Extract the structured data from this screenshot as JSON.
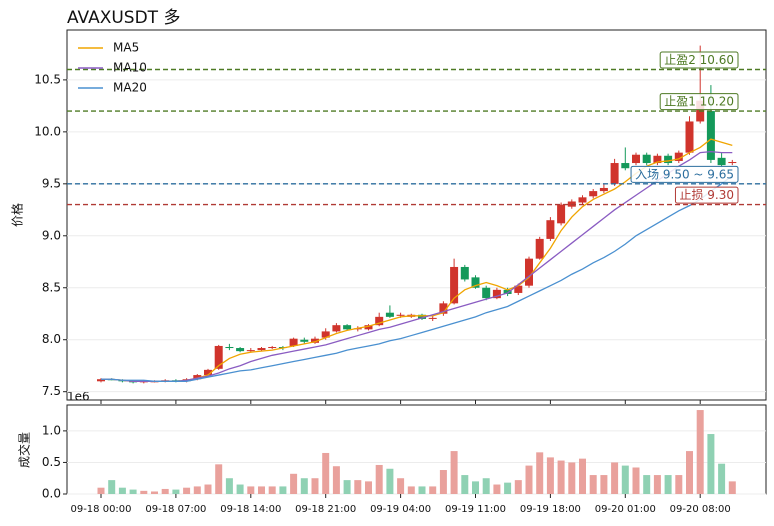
{
  "chart_data": {
    "type": "candlestick",
    "title": "AVAXUSDT  多",
    "ylabel": "价格",
    "volume_label": "成交量",
    "volume_offset_label": "1e6",
    "categories": [
      "09-18 00:00",
      null,
      null,
      null,
      null,
      null,
      null,
      "09-18 07:00",
      null,
      null,
      null,
      null,
      null,
      null,
      "09-18 14:00",
      null,
      null,
      null,
      null,
      null,
      null,
      "09-18 21:00",
      null,
      null,
      null,
      null,
      null,
      null,
      "09-19 04:00",
      null,
      null,
      null,
      null,
      null,
      null,
      "09-19 11:00",
      null,
      null,
      null,
      null,
      null,
      null,
      "09-19 18:00",
      null,
      null,
      null,
      null,
      null,
      null,
      "09-20 01:00",
      null,
      null,
      null,
      null,
      null,
      null,
      "09-20 08:00",
      null,
      null,
      null
    ],
    "open": [
      7.6,
      7.62,
      7.61,
      7.6,
      7.59,
      7.6,
      7.6,
      7.61,
      7.6,
      7.62,
      7.66,
      7.72,
      7.93,
      7.92,
      7.89,
      7.9,
      7.92,
      7.93,
      7.94,
      8.0,
      7.97,
      8.02,
      8.08,
      8.14,
      8.1,
      8.1,
      8.14,
      8.26,
      8.23,
      8.22,
      8.24,
      8.2,
      8.25,
      8.35,
      8.7,
      8.6,
      8.5,
      8.4,
      8.48,
      8.45,
      8.52,
      8.78,
      8.97,
      9.12,
      9.28,
      9.32,
      9.38,
      9.43,
      9.5,
      9.7,
      9.7,
      9.78,
      9.7,
      9.77,
      9.72,
      9.8,
      10.1,
      10.2,
      9.75,
      9.7
    ],
    "high": [
      7.63,
      7.63,
      7.62,
      7.61,
      7.61,
      7.61,
      7.62,
      7.62,
      7.63,
      7.67,
      7.72,
      7.95,
      7.96,
      7.93,
      7.92,
      7.93,
      7.94,
      7.94,
      8.02,
      8.02,
      8.03,
      8.11,
      8.16,
      8.15,
      8.13,
      8.15,
      8.26,
      8.33,
      8.26,
      8.25,
      8.25,
      8.23,
      8.37,
      8.78,
      8.72,
      8.62,
      8.52,
      8.5,
      8.5,
      8.54,
      8.8,
      8.99,
      9.18,
      9.32,
      9.35,
      9.39,
      9.45,
      9.5,
      9.74,
      9.85,
      9.8,
      9.8,
      9.79,
      9.79,
      9.82,
      10.15,
      10.83,
      10.45,
      9.8,
      9.73
    ],
    "low": [
      7.59,
      7.61,
      7.59,
      7.58,
      7.58,
      7.59,
      7.59,
      7.59,
      7.59,
      7.61,
      7.65,
      7.71,
      7.9,
      7.88,
      7.88,
      7.89,
      7.91,
      7.9,
      7.93,
      7.96,
      7.96,
      8.0,
      8.07,
      8.09,
      8.08,
      8.09,
      8.13,
      8.21,
      8.21,
      8.21,
      8.19,
      8.18,
      8.23,
      8.34,
      8.56,
      8.49,
      8.38,
      8.39,
      8.42,
      8.43,
      8.5,
      8.77,
      8.95,
      9.1,
      9.26,
      9.3,
      9.36,
      9.41,
      9.48,
      9.63,
      9.68,
      9.68,
      9.68,
      9.68,
      9.7,
      9.78,
      10.08,
      9.7,
      9.66,
      9.68
    ],
    "close": [
      7.62,
      7.61,
      7.6,
      7.59,
      7.6,
      7.6,
      7.61,
      7.6,
      7.62,
      7.66,
      7.71,
      7.94,
      7.92,
      7.89,
      7.9,
      7.92,
      7.93,
      7.92,
      8.01,
      7.98,
      8.01,
      8.08,
      8.14,
      8.1,
      8.11,
      8.14,
      8.22,
      8.22,
      8.24,
      8.24,
      8.2,
      8.21,
      8.35,
      8.7,
      8.58,
      8.5,
      8.4,
      8.48,
      8.44,
      8.52,
      8.78,
      8.97,
      9.15,
      9.3,
      9.33,
      9.37,
      9.43,
      9.46,
      9.7,
      9.65,
      9.78,
      9.7,
      9.77,
      9.7,
      9.8,
      10.1,
      10.3,
      9.73,
      9.68,
      9.71
    ],
    "volume": [
      0.1,
      0.22,
      0.1,
      0.07,
      0.05,
      0.04,
      0.08,
      0.07,
      0.1,
      0.12,
      0.15,
      0.47,
      0.25,
      0.15,
      0.12,
      0.12,
      0.12,
      0.12,
      0.32,
      0.25,
      0.25,
      0.65,
      0.44,
      0.22,
      0.22,
      0.2,
      0.46,
      0.4,
      0.25,
      0.12,
      0.12,
      0.12,
      0.38,
      0.68,
      0.3,
      0.2,
      0.25,
      0.15,
      0.18,
      0.22,
      0.45,
      0.66,
      0.58,
      0.53,
      0.5,
      0.56,
      0.3,
      0.3,
      0.5,
      0.45,
      0.42,
      0.3,
      0.3,
      0.3,
      0.3,
      0.68,
      1.33,
      0.95,
      0.48,
      0.2
    ],
    "up_color": "#d0342c",
    "down_color": "#14995a",
    "up_volume_color": "#e9a19c",
    "down_volume_color": "#8fd1b3",
    "series": [
      {
        "name": "MA5",
        "color": "#f0a500",
        "values": [
          7.62,
          7.62,
          7.61,
          7.6,
          7.6,
          7.6,
          7.6,
          7.6,
          7.61,
          7.63,
          7.66,
          7.75,
          7.82,
          7.86,
          7.88,
          7.89,
          7.9,
          7.92,
          7.94,
          7.96,
          7.98,
          8.02,
          8.06,
          8.09,
          8.11,
          8.13,
          8.16,
          8.19,
          8.22,
          8.23,
          8.23,
          8.23,
          8.26,
          8.4,
          8.48,
          8.52,
          8.55,
          8.52,
          8.48,
          8.52,
          8.6,
          8.74,
          8.88,
          9.05,
          9.18,
          9.28,
          9.35,
          9.4,
          9.45,
          9.52,
          9.6,
          9.67,
          9.71,
          9.72,
          9.74,
          9.8,
          9.85,
          9.93,
          9.9,
          9.87
        ]
      },
      {
        "name": "MA10",
        "color": "#8a5cc2",
        "values": [
          7.62,
          7.62,
          7.61,
          7.6,
          7.6,
          7.6,
          7.6,
          7.6,
          7.61,
          7.63,
          7.65,
          7.68,
          7.72,
          7.75,
          7.79,
          7.82,
          7.85,
          7.87,
          7.89,
          7.91,
          7.93,
          7.95,
          7.98,
          8.01,
          8.04,
          8.07,
          8.1,
          8.12,
          8.15,
          8.18,
          8.21,
          8.24,
          8.27,
          8.3,
          8.33,
          8.36,
          8.39,
          8.42,
          8.45,
          8.53,
          8.61,
          8.69,
          8.77,
          8.85,
          8.93,
          9.01,
          9.09,
          9.17,
          9.25,
          9.32,
          9.39,
          9.46,
          9.53,
          9.6,
          9.67,
          9.73,
          9.8,
          9.81,
          9.8,
          9.8
        ]
      },
      {
        "name": "MA20",
        "color": "#4a90d0",
        "values": [
          7.62,
          7.62,
          7.61,
          7.61,
          7.61,
          7.6,
          7.6,
          7.6,
          7.6,
          7.62,
          7.64,
          7.66,
          7.68,
          7.7,
          7.71,
          7.73,
          7.75,
          7.77,
          7.79,
          7.81,
          7.83,
          7.85,
          7.87,
          7.9,
          7.92,
          7.94,
          7.96,
          7.99,
          8.01,
          8.04,
          8.07,
          8.1,
          8.13,
          8.16,
          8.19,
          8.22,
          8.26,
          8.29,
          8.32,
          8.37,
          8.42,
          8.47,
          8.52,
          8.57,
          8.63,
          8.68,
          8.74,
          8.79,
          8.85,
          8.92,
          9.0,
          9.06,
          9.12,
          9.18,
          9.24,
          9.29,
          9.35,
          9.43,
          9.5,
          9.58
        ]
      }
    ],
    "levels": [
      {
        "label": "止盈2 10.60",
        "value": 10.6,
        "color": "#4e7a24"
      },
      {
        "label": "止盈1 10.20",
        "value": 10.2,
        "color": "#4e7a24"
      },
      {
        "label": "入场 9.50 ~ 9.65",
        "value": 9.5,
        "color": "#2c6e9e"
      },
      {
        "label": "止损 9.30",
        "value": 9.3,
        "color": "#b03a35"
      }
    ],
    "ylim": [
      7.42,
      10.98
    ],
    "yticks": [
      7.5,
      {
        "value": 8.0,
        "label": "8.0"
      },
      8.5,
      {
        "value": 9.0,
        "label": "9.0"
      },
      9.5,
      {
        "value": 10.0,
        "label": "10.0"
      },
      10.5
    ],
    "volume_ylim": [
      0,
      1.41
    ],
    "volume_yticks": [
      {
        "value": 0,
        "label": "0.0"
      },
      0.5,
      {
        "value": 1,
        "label": "1.0"
      }
    ],
    "grid": true,
    "legend": "upper left"
  }
}
